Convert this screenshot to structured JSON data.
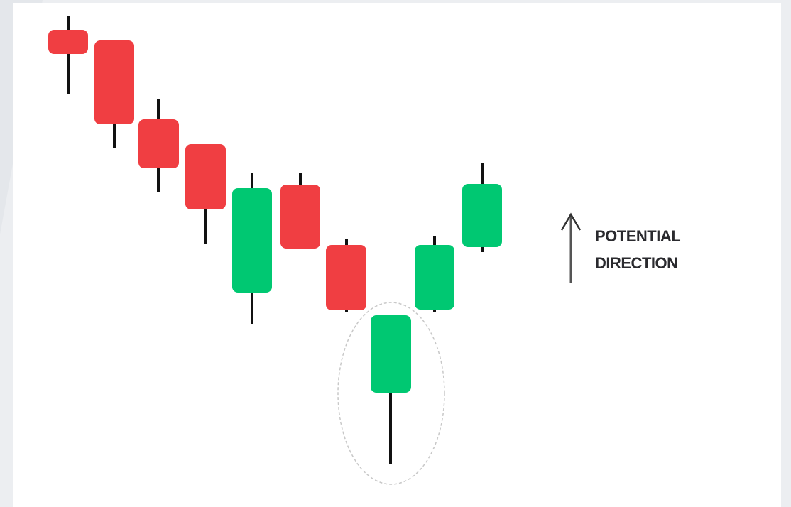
{
  "annotation": {
    "lines": [
      "POTENTIAL",
      "DIRECTION"
    ]
  }
}
